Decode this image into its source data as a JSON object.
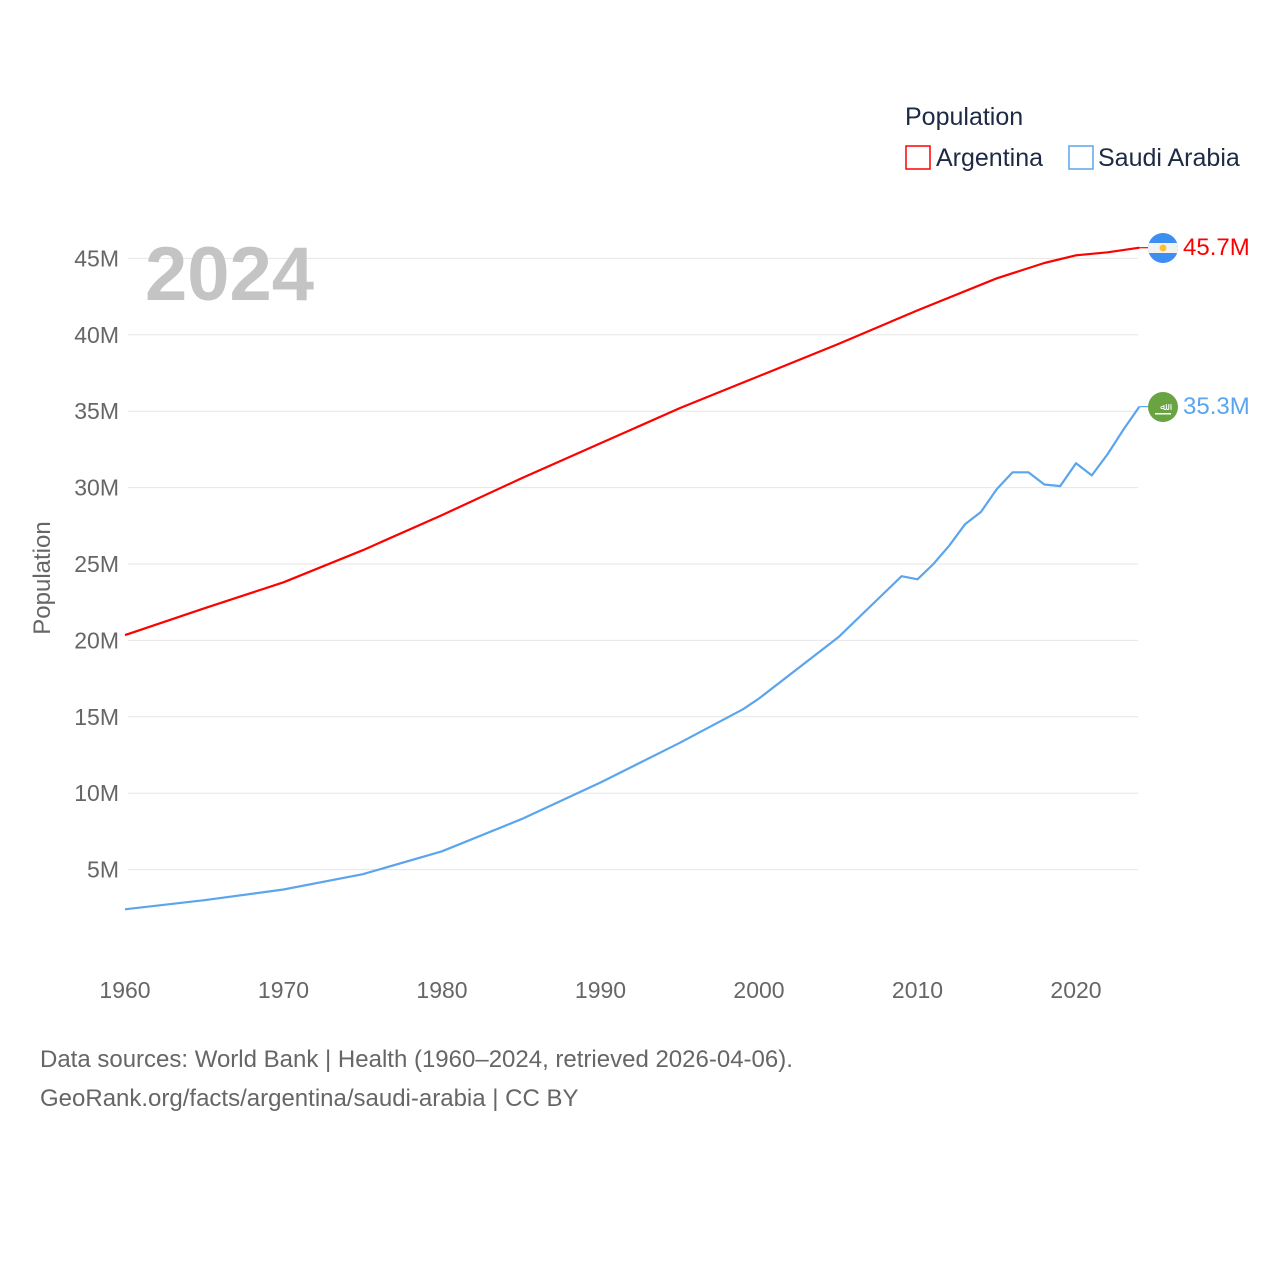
{
  "chart_data": {
    "type": "line",
    "year_label": "2024",
    "ylabel": "Population",
    "legend_title": "Population",
    "legend_position": "top-right",
    "grid": true,
    "xlim": [
      1960,
      2024
    ],
    "ylim": [
      0,
      45000000
    ],
    "x_ticks": [
      1960,
      1970,
      1980,
      1990,
      2000,
      2010,
      2020
    ],
    "y_ticks": [
      {
        "v": 5,
        "label": "5M"
      },
      {
        "v": 10,
        "label": "10M"
      },
      {
        "v": 15,
        "label": "15M"
      },
      {
        "v": 20,
        "label": "20M"
      },
      {
        "v": 25,
        "label": "25M"
      },
      {
        "v": 30,
        "label": "30M"
      },
      {
        "v": 35,
        "label": "35M"
      },
      {
        "v": 40,
        "label": "40M"
      },
      {
        "v": 45,
        "label": "45M"
      }
    ],
    "units": "millions",
    "series": [
      {
        "name": "Argentina",
        "color": "#ff0000",
        "end_label": "45.7M",
        "flag": "argentina-flag",
        "x": [
          1960,
          1965,
          1970,
          1975,
          1980,
          1985,
          1990,
          1995,
          2000,
          2005,
          2010,
          2015,
          2018,
          2020,
          2022,
          2024
        ],
        "values": [
          20.35,
          22.1,
          23.8,
          25.9,
          28.2,
          30.6,
          32.9,
          35.2,
          37.3,
          39.4,
          41.6,
          43.7,
          44.7,
          45.2,
          45.4,
          45.7
        ]
      },
      {
        "name": "Saudi Arabia",
        "color": "#5aa5ee",
        "end_label": "35.3M",
        "flag": "saudi-arabia-flag",
        "x": [
          1960,
          1965,
          1970,
          1975,
          1980,
          1985,
          1990,
          1995,
          1999,
          2000,
          2005,
          2009,
          2010,
          2011,
          2012,
          2013,
          2014,
          2015,
          2016,
          2017,
          2018,
          2019,
          2020,
          2021,
          2022,
          2023,
          2024
        ],
        "values": [
          2.4,
          3.0,
          3.7,
          4.7,
          6.2,
          8.3,
          10.7,
          13.3,
          15.5,
          16.2,
          20.2,
          24.2,
          24.0,
          25.0,
          26.2,
          27.6,
          28.4,
          29.9,
          31.0,
          31.0,
          30.2,
          30.1,
          31.6,
          30.8,
          32.2,
          33.8,
          35.3
        ]
      }
    ]
  },
  "footer": {
    "line1": "Data sources: World Bank | Health (1960–2024, retrieved 2026-04-06).",
    "line2": "GeoRank.org/facts/argentina/saudi-arabia | CC BY"
  }
}
